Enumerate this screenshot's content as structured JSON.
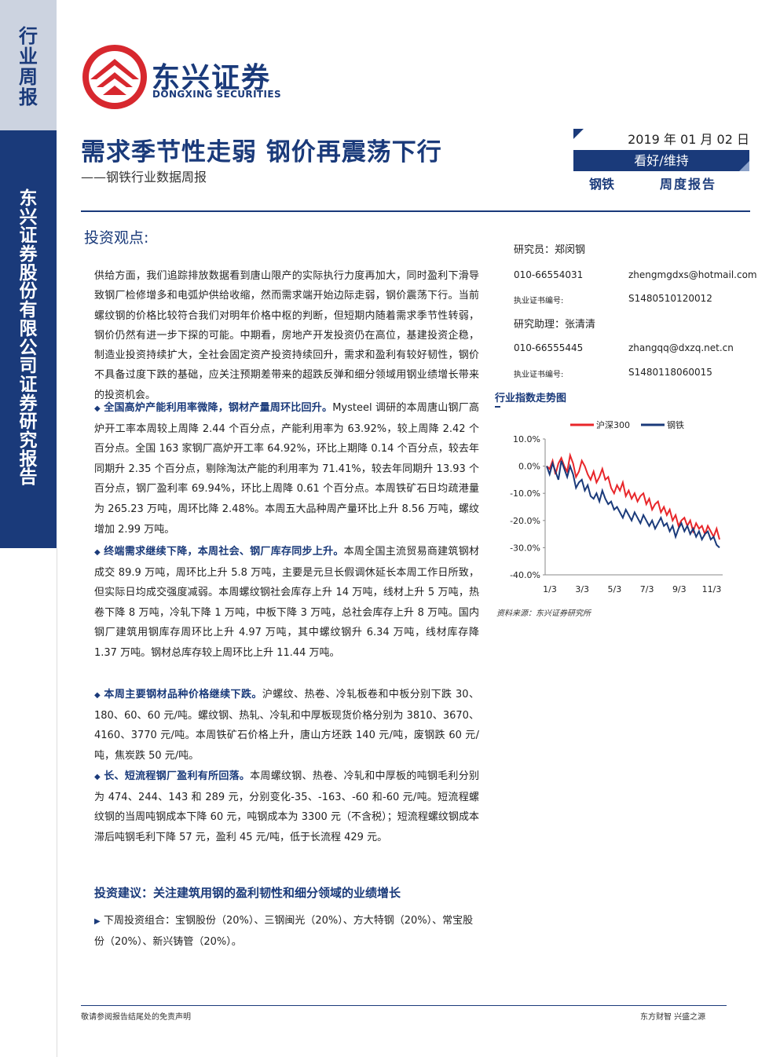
{
  "side": {
    "top_label": [
      "行",
      "业",
      "周",
      "报"
    ],
    "bottom_label": [
      "东",
      "兴",
      "证",
      "券",
      "股",
      "份",
      "有",
      "限",
      "公",
      "司",
      "证",
      "券",
      "研",
      "究",
      "报",
      "告"
    ]
  },
  "brand": {
    "name_cn": "东兴证券",
    "name_en": "DONGXING SECURITIES",
    "color": "#1a3a7a",
    "logo_color": "#d7282e"
  },
  "header": {
    "title": "需求季节性走弱 钢价再震荡下行",
    "subtitle": "——钢铁行业数据周报",
    "date": "2019 年 01 月 02 日",
    "rating": "看好/维持",
    "sector": "钢铁",
    "report_type": "周度报告"
  },
  "section_head": "投资观点:",
  "intro": "供给方面，我们追踪排放数据看到唐山限产的实际执行力度再加大，同时盈利下滑导致钢厂检修增多和电弧炉供给收缩，然而需求端开始边际走弱，钢价震荡下行。当前螺纹钢的价格比较符合我们对明年价格中枢的判断，但短期内随着需求季节性转弱，钢价仍然有进一步下探的可能。中期看，房地产开发投资仍在高位，基建投资企稳，制造业投资持续扩大，全社会固定资产投资持续回升，需求和盈利有较好韧性，钢价不具备过度下跌的基础，应关注预期差带来的超跌反弹和细分领域用钢业绩增长带来的投资机会。",
  "bullets": [
    {
      "head": "全国高炉产能利用率微降，钢材产量周环比回升。",
      "text": "Mysteel 调研的本周唐山钢厂高炉开工率本周较上周降 2.44 个百分点，产能利用率为 63.92%，较上周降 2.42 个百分点。全国 163 家钢厂高炉开工率 64.92%，环比上期降 0.14 个百分点，较去年同期升 2.35 个百分点，剔除淘汰产能的利用率为 71.41%，较去年同期升 13.93 个百分点，钢厂盈利率 69.94%，环比上周降 0.61 个百分点。本周铁矿石日均疏港量为 265.23 万吨，周环比降 2.48%。本周五大品种周产量环比上升 8.56 万吨，螺纹增加 2.99 万吨。"
    },
    {
      "head": "终端需求继续下降，本周社会、钢厂库存同步上升。",
      "text": "本周全国主流贸易商建筑钢材成交 89.9 万吨，周环比上升 5.8 万吨，主要是元旦长假调休延长本周工作日所致，但实际日均成交强度减弱。本周螺纹钢社会库存上升 14 万吨，线材上升 5 万吨，热卷下降 8 万吨，冷轧下降 1 万吨，中板下降 3 万吨，总社会库存上升 8 万吨。国内钢厂建筑用钢库存周环比上升 4.97 万吨，其中螺纹钢升 6.34 万吨，线材库存降 1.37 万吨。钢材总库存较上周环比上升 11.44 万吨。"
    },
    {
      "head": "本周主要钢材品种价格继续下跌。",
      "text": "沪螺纹、热卷、冷轧板卷和中板分别下跌 30、180、60、60 元/吨。螺纹钢、热轧、冷轧和中厚板现货价格分别为 3810、3670、4160、3770 元/吨。本周铁矿石价格上升，唐山方坯跌 140 元/吨，废钢跌 60 元/吨，焦炭跌 50 元/吨。"
    },
    {
      "head": "长、短流程钢厂盈利有所回落。",
      "text": "本周螺纹钢、热卷、冷轧和中厚板的吨钢毛利分别为 474、244、143 和 289 元，分别变化-35、-163、-60 和-60 元/吨。短流程螺纹钢的当周吨钢成本下降 60 元，吨钢成本为 3300 元（不含税）；短流程螺纹钢成本滞后吨钢毛利下降 57 元，盈利 45 元/吨，低于长流程 429 元。"
    }
  ],
  "recommendation": {
    "head": "投资建议：关注建筑用钢的盈利韧性和细分领域的业绩增长",
    "text": "下周投资组合：宝钢股份（20%）、三钢闽光（20%）、方大特钢（20%）、常宝股份（20%）、新兴铸管（20%）。"
  },
  "analysts": {
    "a1_label": "研究员：郑闵钢",
    "a1_phone": "010-66554031",
    "a1_email": "zhengmgdxs@hotmail.com",
    "a1_cert_label": "执业证书编号:",
    "a1_cert": "S1480510120012",
    "a2_label": "研究助理：张清清",
    "a2_phone": "010-66555445",
    "a2_email": "zhangqq@dxzq.net.cn",
    "a2_cert_label": "执业证书编号:",
    "a2_cert": "S1480118060015"
  },
  "chart_title": "行业指数走势图",
  "chart_source": "资料来源：东兴证券研究所",
  "chart_data": {
    "type": "line",
    "x_ticks": [
      "1/3",
      "3/3",
      "5/3",
      "7/3",
      "9/3",
      "11/3"
    ],
    "y_ticks": [
      "10.0%",
      "0.0%",
      "-10.0%",
      "-20.0%",
      "-30.0%",
      "-40.0%"
    ],
    "ylim": [
      -40,
      10
    ],
    "legend_position": "top",
    "series": [
      {
        "name": "沪深300",
        "color": "#e8262a",
        "values": [
          0,
          -1,
          2,
          -3,
          1,
          3,
          0,
          -2,
          4,
          1,
          -4,
          -2,
          2,
          0,
          -3,
          -5,
          -2,
          -6,
          -4,
          -1,
          -5,
          -4,
          -8,
          -10,
          -7,
          -9,
          -6,
          -11,
          -9,
          -12,
          -10,
          -13,
          -11,
          -10,
          -14,
          -12,
          -16,
          -14,
          -13,
          -17,
          -15,
          -18,
          -16,
          -20,
          -18,
          -22,
          -20,
          -19,
          -22,
          -20,
          -24,
          -21,
          -23,
          -22,
          -25,
          -22,
          -24,
          -26,
          -23,
          -27
        ]
      },
      {
        "name": "钢铁",
        "color": "#1a3a7a",
        "values": [
          0,
          -3,
          1,
          -2,
          -5,
          2,
          -1,
          -4,
          0,
          -3,
          -8,
          -6,
          -5,
          -9,
          -7,
          -11,
          -12,
          -10,
          -13,
          -9,
          -12,
          -14,
          -13,
          -16,
          -15,
          -17,
          -19,
          -16,
          -18,
          -20,
          -17,
          -19,
          -21,
          -18,
          -20,
          -22,
          -20,
          -23,
          -21,
          -19,
          -22,
          -21,
          -24,
          -22,
          -26,
          -23,
          -21,
          -24,
          -22,
          -25,
          -23,
          -26,
          -24,
          -27,
          -25,
          -24,
          -27,
          -26,
          -29,
          -30
        ]
      }
    ]
  },
  "footer": {
    "left": "敬请参阅报告结尾处的免责声明",
    "right": "东方财智  兴盛之源"
  }
}
